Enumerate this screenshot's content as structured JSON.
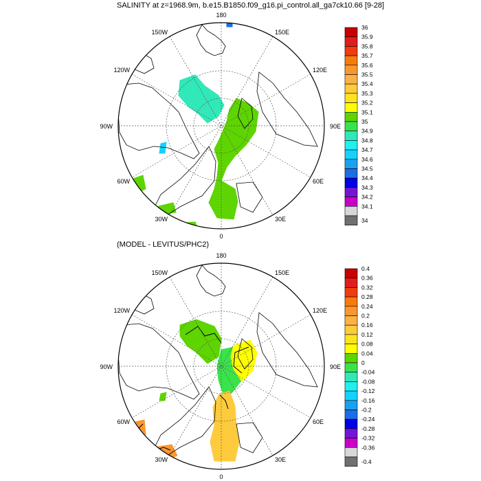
{
  "chart_data": [
    {
      "type": "polar-map",
      "title": "SALINITY at z=1968.9m, b.e15.B1850.f09_g16.pi_control.all_ga7ck10.66 [9-28]",
      "longitude_labels": {
        "top": "180",
        "topLeft": "150W",
        "topRight": "150E",
        "upperLeft": "120W",
        "upperRight": "120E",
        "left": "90W",
        "right": "90E",
        "lowerLeft": "60W",
        "lowerRight": "60E",
        "bottomLeft": "30W",
        "bottomRight": "30E",
        "bottom": "0"
      },
      "colorbar": {
        "levels": [
          "36",
          "35.9",
          "35.8",
          "35.7",
          "35.6",
          "35.5",
          "35.4",
          "35.3",
          "35.2",
          "35.1",
          "35",
          "34.9",
          "34.8",
          "34.7",
          "34.6",
          "34.5",
          "34.4",
          "34.3",
          "34.2",
          "34.1",
          "34"
        ],
        "colors": [
          "#c80000",
          "#e01c1c",
          "#f03c0f",
          "#f77b08",
          "#fa9632",
          "#fbb146",
          "#fdcb3c",
          "#ffe41c",
          "#ffff00",
          "#5ed400",
          "#3be34b",
          "#30e8b8",
          "#20f0f0",
          "#14d2ff",
          "#1aa0f0",
          "#1a6ee6",
          "#0000e6",
          "#7614d6",
          "#c800c8",
          "#d8d8d8",
          "#707070"
        ],
        "range": [
          34,
          36
        ]
      }
    },
    {
      "type": "polar-map",
      "title": "(MODEL - LEVITUS/PHC2)",
      "longitude_labels": {
        "top": "180",
        "topLeft": "150W",
        "topRight": "150E",
        "upperLeft": "120W",
        "upperRight": "120E",
        "left": "90W",
        "right": "90E",
        "lowerLeft": "60W",
        "lowerRight": "60E",
        "bottomLeft": "30W",
        "bottomRight": "30E",
        "bottom": "0"
      },
      "colorbar": {
        "levels": [
          "0.4",
          "0.36",
          "0.32",
          "0.28",
          "0.24",
          "0.2",
          "0.16",
          "0.12",
          "0.08",
          "0.04",
          "0",
          "-0.04",
          "-0.08",
          "-0.12",
          "-0.16",
          "-0.2",
          "-0.24",
          "-0.28",
          "-0.32",
          "-0.36",
          "-0.4"
        ],
        "colors": [
          "#c80000",
          "#e01c1c",
          "#f03c0f",
          "#f77b08",
          "#fa9632",
          "#fbb146",
          "#fdcb3c",
          "#ffe41c",
          "#ffff00",
          "#5ed400",
          "#3be34b",
          "#30e8b8",
          "#20f0f0",
          "#14d2ff",
          "#1aa0f0",
          "#1a6ee6",
          "#0000e6",
          "#7614d6",
          "#c800c8",
          "#d8d8d8",
          "#707070"
        ],
        "range": [
          -0.4,
          0.4
        ]
      }
    }
  ],
  "palette": {
    "green": "#5ed400",
    "green2": "#3be34b",
    "cyan": "#30e8b8",
    "sky": "#14d2ff",
    "blue": "#1a6ee6",
    "yellow": "#ffff00",
    "gold": "#fdcb3c",
    "orange": "#fa9632"
  }
}
